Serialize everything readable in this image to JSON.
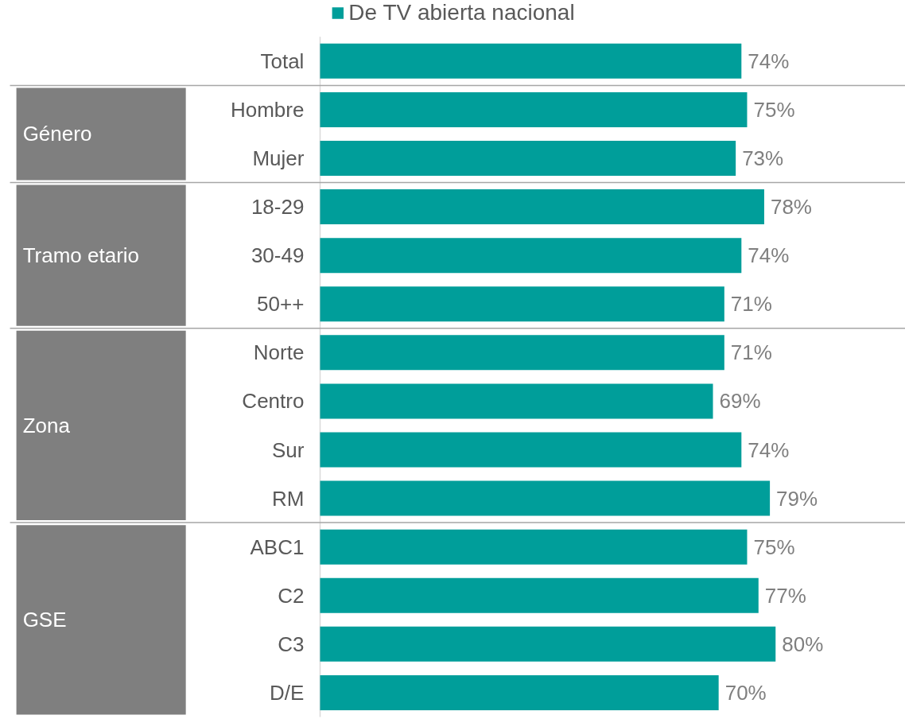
{
  "chart_data": {
    "type": "bar",
    "orientation": "horizontal",
    "categories": [
      "Total",
      "Hombre",
      "Mujer",
      "18-29",
      "30-49",
      "50++",
      "Norte",
      "Centro",
      "Sur",
      "RM",
      "ABC1",
      "C2",
      "C3",
      "D/E"
    ],
    "series": [
      {
        "name": "De TV abierta nacional",
        "color": "#009e9a",
        "values": [
          74,
          75,
          73,
          78,
          74,
          71,
          71,
          69,
          74,
          79,
          75,
          77,
          80,
          70
        ],
        "value_labels": [
          "74%",
          "75%",
          "73%",
          "78%",
          "74%",
          "71%",
          "71%",
          "69%",
          "74%",
          "79%",
          "75%",
          "77%",
          "80%",
          "70%"
        ]
      }
    ],
    "annotations": [
      "Género",
      "Tramo etario",
      "Zona",
      "GSE"
    ],
    "legend": "top",
    "grid": false
  }
}
